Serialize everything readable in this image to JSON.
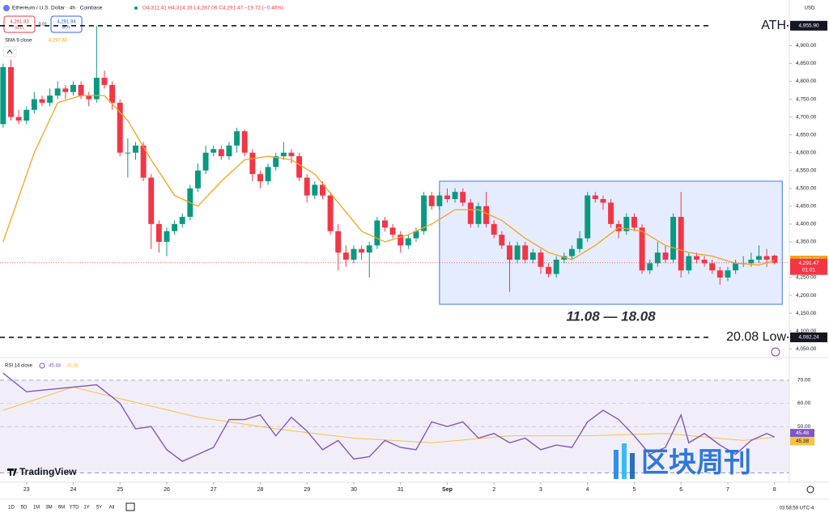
{
  "header": {
    "symbol": "Ethereum / U.S. Dollar · 4h · Coinbase",
    "ohlc": "O4,311.41 H4,314.16 L4,287.06 C4,291.47 −19.72 (−0.46%)",
    "sell_price": "4,291.93",
    "sell": "SELL",
    "spread": "0.01",
    "buy_price": "4,291.94",
    "buy": "BUY",
    "currency": "USD"
  },
  "chart_data": [
    {
      "type": "candlestick",
      "up_color": "#089981",
      "down_color": "#f23645",
      "open": [
        4680,
        4840,
        4700,
        4690,
        4720,
        4750,
        4740,
        4760,
        4780,
        4770,
        4790,
        4760,
        4750,
        4810,
        4790,
        4740,
        4600,
        4600,
        4620,
        4530,
        4400,
        4350,
        4380,
        4400,
        4420,
        4500,
        4550,
        4600,
        4610,
        4590,
        4620,
        4660,
        4600,
        4540,
        4520,
        4560,
        4590,
        4600,
        4590,
        4530,
        4480,
        4510,
        4480,
        4380,
        4320,
        4300,
        4330,
        4320,
        4340,
        4410,
        4390,
        4370,
        4340,
        4360,
        4380,
        4480,
        4450,
        4480,
        4470,
        4490,
        4460,
        4400,
        4450,
        4400,
        4370,
        4340,
        4300,
        4340,
        4300,
        4320,
        4280,
        4260,
        4300,
        4310,
        4330,
        4360,
        4480,
        4470,
        4460,
        4400,
        4380,
        4420,
        4390,
        4270,
        4290,
        4320,
        4300,
        4420,
        4270,
        4310,
        4300,
        4290,
        4270,
        4250,
        4270,
        4290,
        4290,
        4300,
        4310,
        4311.41
      ],
      "high": [
        4850,
        4860,
        4720,
        4730,
        4770,
        4760,
        4780,
        4800,
        4790,
        4800,
        4800,
        4770,
        4955.9,
        4830,
        4800,
        4750,
        4640,
        4630,
        4630,
        4540,
        4410,
        4390,
        4410,
        4430,
        4510,
        4570,
        4620,
        4620,
        4620,
        4630,
        4670,
        4665,
        4610,
        4550,
        4570,
        4600,
        4630,
        4610,
        4600,
        4540,
        4520,
        4520,
        4490,
        4400,
        4340,
        4340,
        4340,
        4350,
        4420,
        4420,
        4400,
        4380,
        4370,
        4390,
        4490,
        4490,
        4490,
        4500,
        4500,
        4500,
        4470,
        4460,
        4490,
        4410,
        4380,
        4350,
        4350,
        4350,
        4330,
        4330,
        4290,
        4310,
        4320,
        4340,
        4380,
        4490,
        4490,
        4480,
        4470,
        4410,
        4430,
        4430,
        4400,
        4300,
        4350,
        4340,
        4430,
        4490,
        4320,
        4320,
        4310,
        4300,
        4280,
        4280,
        4300,
        4310,
        4320,
        4340,
        4330,
        4314.16
      ],
      "low": [
        4670,
        4690,
        4680,
        4680,
        4710,
        4730,
        4730,
        4750,
        4750,
        4760,
        4750,
        4730,
        4740,
        4780,
        4720,
        4590,
        4530,
        4580,
        4520,
        4330,
        4320,
        4310,
        4370,
        4390,
        4410,
        4490,
        4540,
        4590,
        4580,
        4580,
        4600,
        4590,
        4520,
        4500,
        4510,
        4550,
        4580,
        4570,
        4520,
        4460,
        4470,
        4470,
        4370,
        4270,
        4280,
        4290,
        4300,
        4250,
        4330,
        4380,
        4360,
        4320,
        4330,
        4350,
        4370,
        4440,
        4440,
        4460,
        4460,
        4450,
        4390,
        4390,
        4390,
        4360,
        4330,
        4210,
        4290,
        4290,
        4290,
        4260,
        4250,
        4250,
        4290,
        4300,
        4320,
        4350,
        4460,
        4440,
        4390,
        4360,
        4370,
        4380,
        4260,
        4260,
        4280,
        4290,
        4290,
        4250,
        4260,
        4290,
        4280,
        4260,
        4230,
        4240,
        4260,
        4280,
        4280,
        4290,
        4280,
        4287.06
      ],
      "close": [
        4840,
        4700,
        4690,
        4720,
        4750,
        4740,
        4760,
        4780,
        4770,
        4790,
        4760,
        4750,
        4810,
        4790,
        4740,
        4600,
        4600,
        4620,
        4530,
        4400,
        4350,
        4380,
        4400,
        4420,
        4500,
        4550,
        4600,
        4610,
        4590,
        4620,
        4660,
        4600,
        4540,
        4520,
        4560,
        4590,
        4600,
        4590,
        4530,
        4480,
        4510,
        4480,
        4380,
        4320,
        4300,
        4330,
        4320,
        4340,
        4410,
        4390,
        4370,
        4340,
        4360,
        4380,
        4480,
        4450,
        4480,
        4470,
        4490,
        4460,
        4400,
        4450,
        4400,
        4370,
        4340,
        4300,
        4340,
        4300,
        4320,
        4280,
        4260,
        4300,
        4310,
        4330,
        4360,
        4480,
        4470,
        4460,
        4400,
        4380,
        4420,
        4390,
        4270,
        4290,
        4320,
        4300,
        4420,
        4270,
        4310,
        4300,
        4290,
        4270,
        4250,
        4270,
        4290,
        4290,
        4300,
        4310,
        4300,
        4291.47
      ],
      "xlim": [
        -0.4,
        100.9
      ],
      "xticks": [
        {
          "value": 3,
          "label": "23"
        },
        {
          "value": 9,
          "label": "24"
        },
        {
          "value": 15,
          "label": "25"
        },
        {
          "value": 21,
          "label": "26"
        },
        {
          "value": 27,
          "label": "27"
        },
        {
          "value": 33,
          "label": "28"
        },
        {
          "value": 39,
          "label": "29"
        },
        {
          "value": 45,
          "label": "30"
        },
        {
          "value": 51,
          "label": "31"
        },
        {
          "value": 57,
          "label": "Sep"
        },
        {
          "value": 63,
          "label": "2"
        },
        {
          "value": 69,
          "label": "3"
        },
        {
          "value": 75,
          "label": "4"
        },
        {
          "value": 81,
          "label": "5"
        },
        {
          "value": 87,
          "label": "6"
        },
        {
          "value": 93,
          "label": "7"
        },
        {
          "value": 99,
          "label": "8"
        }
      ],
      "ylim": [
        4030,
        5028
      ],
      "yticks": [
        {
          "value": 4050,
          "label": "4,050.00"
        },
        {
          "value": 4100,
          "label": "4,100.00"
        },
        {
          "value": 4150,
          "label": "4,150.00"
        },
        {
          "value": 4200,
          "label": "4,200.00"
        },
        {
          "value": 4250,
          "label": "4,250.00"
        },
        {
          "value": 4350,
          "label": "4,350.00"
        },
        {
          "value": 4400,
          "label": "4,400.00"
        },
        {
          "value": 4450,
          "label": "4,450.00"
        },
        {
          "value": 4500,
          "label": "4,500.00"
        },
        {
          "value": 4550,
          "label": "4,550.00"
        },
        {
          "value": 4600,
          "label": "4,600.00"
        },
        {
          "value": 4650,
          "label": "4,650.00"
        },
        {
          "value": 4700,
          "label": "4,700.00"
        },
        {
          "value": 4750,
          "label": "4,750.00"
        },
        {
          "value": 4800,
          "label": "4,800.00"
        },
        {
          "value": 4850,
          "label": "4,850.00"
        },
        {
          "value": 4900,
          "label": "4,900.00"
        }
      ],
      "sma": {
        "name": "SMA 9 close",
        "color": "#f7a21b",
        "x": [
          0,
          4,
          7,
          10,
          13,
          16,
          19,
          22,
          25,
          28,
          31,
          34,
          37,
          40,
          43,
          46,
          49,
          52,
          55,
          58,
          61,
          64,
          67,
          70,
          73,
          76,
          79,
          82,
          85,
          88,
          91,
          94,
          97,
          99
        ],
        "values": [
          4350,
          4600,
          4740,
          4760,
          4760,
          4690,
          4580,
          4480,
          4450,
          4520,
          4580,
          4590,
          4580,
          4540,
          4460,
          4380,
          4350,
          4370,
          4400,
          4440,
          4440,
          4410,
          4360,
          4320,
          4300,
          4340,
          4390,
          4380,
          4340,
          4320,
          4310,
          4290,
          4285,
          4297.6
        ],
        "last": {
          "value": 4297.6,
          "label": "4,297.60"
        }
      },
      "levels": [
        {
          "label": "ATH",
          "value": 4955.9,
          "tag": "4,955.90"
        },
        {
          "label": "20.08 Low",
          "value": 4082.24,
          "tag": "4,082.24"
        }
      ],
      "last_price": {
        "value": 4291.47,
        "label": "4,291.47",
        "countdown": "01:01"
      },
      "range_box": {
        "label": "11.08 — 18.08",
        "xlim": [
          56,
          100
        ],
        "ylim": [
          4175,
          4520
        ]
      }
    },
    {
      "type": "line",
      "xlim": [
        -0.4,
        100.9
      ],
      "ylim": [
        26,
        79
      ],
      "yticks": [
        {
          "value": 70,
          "label": "70.00"
        },
        {
          "value": 60,
          "label": "60.00"
        },
        {
          "value": 50,
          "label": "50.00"
        }
      ],
      "band": [
        30,
        70
      ],
      "series": [
        {
          "name": "RSI 14 close",
          "color": "#7e57c2",
          "x": [
            0,
            3,
            6,
            9,
            12,
            15,
            17,
            19,
            21,
            23,
            25,
            27,
            29,
            31,
            33,
            35,
            37,
            39,
            41,
            43,
            45,
            47,
            49,
            51,
            53,
            55,
            57,
            59,
            61,
            63,
            65,
            67,
            69,
            71,
            73,
            75,
            77,
            79,
            81,
            83,
            85,
            87,
            88,
            90,
            92,
            94,
            96,
            98,
            99
          ],
          "values": [
            73,
            65,
            66,
            67,
            68,
            60,
            49,
            50,
            40,
            35,
            38,
            41,
            53,
            53,
            55,
            46,
            54,
            48,
            40,
            44,
            36,
            37,
            44,
            41,
            40,
            52,
            50,
            52,
            45,
            47,
            43,
            45,
            40,
            42,
            41,
            52,
            57,
            53,
            46,
            38,
            41,
            55,
            43,
            47,
            42,
            38,
            44,
            47,
            45.48
          ],
          "last": {
            "value": 45.48,
            "label": "45.48"
          }
        },
        {
          "color": "#f5c242",
          "x": [
            0,
            9,
            15,
            25,
            35,
            45,
            55,
            65,
            75,
            85,
            95,
            99
          ],
          "values": [
            57,
            67,
            62,
            54,
            49,
            45,
            43,
            46,
            46,
            47,
            44,
            45.38
          ],
          "last": {
            "value": 45.38,
            "label": "45.38"
          }
        }
      ]
    }
  ],
  "footer": {
    "ranges": [
      "1D",
      "5D",
      "1M",
      "3M",
      "6M",
      "YTD",
      "1Y",
      "5Y",
      "All"
    ],
    "time": "03:58:59 UTC-4",
    "brand": "TradingView",
    "watermark": "区块周刊"
  }
}
